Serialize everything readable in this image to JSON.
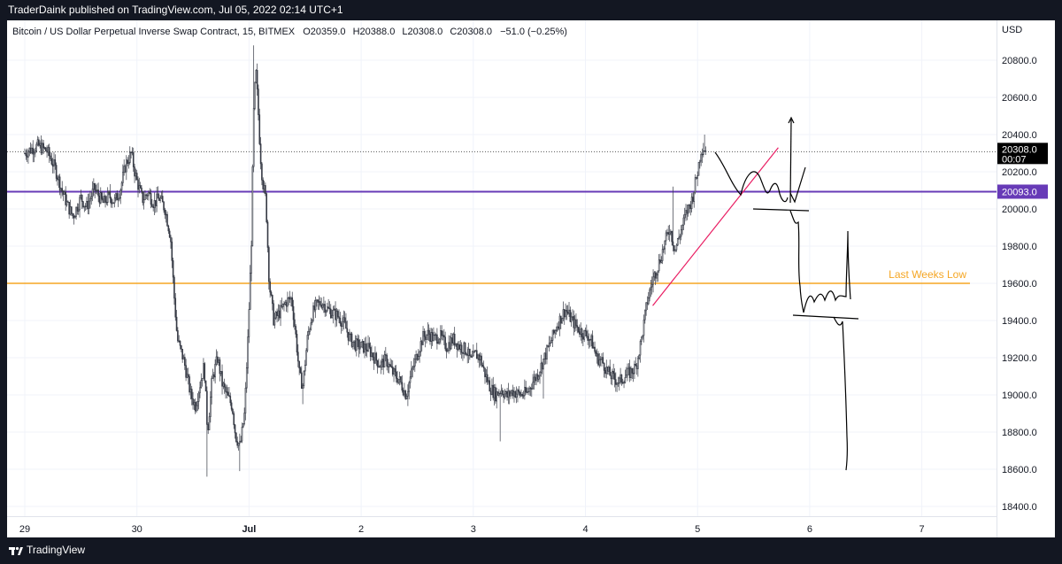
{
  "header": {
    "published_text": "TraderDaink published on TradingView.com, Jul 05, 2022 02:14 UTC+1"
  },
  "footer": {
    "brand": "TradingView"
  },
  "chart_data": {
    "type": "candlestick",
    "symbol_line": "Bitcoin / US Dollar Perpetual Inverse Swap Contract, 15, BITMEX",
    "ohlc": {
      "open_label": "O",
      "open": "20359.0",
      "high_label": "H",
      "high": "20388.0",
      "low_label": "L",
      "low": "20308.0",
      "close_label": "C",
      "close": "20308.0",
      "change": "−51.0 (−0.25%)"
    },
    "currency": "USD",
    "ylim": [
      18400,
      20900
    ],
    "y_ticks": [
      "20800.0",
      "20600.0",
      "20400.0",
      "20200.0",
      "20000.0",
      "19800.0",
      "19600.0",
      "19400.0",
      "19200.0",
      "19000.0",
      "18800.0",
      "18600.0",
      "18400.0"
    ],
    "x_ticks": [
      "29",
      "30",
      "Jul",
      "2",
      "3",
      "4",
      "5",
      "6",
      "7"
    ],
    "last_price": {
      "value": 20308.0,
      "label": "20308.0",
      "countdown": "00:07"
    },
    "horizontal_lines": [
      {
        "name": "level-20093",
        "value": 20093.0,
        "label": "20093.0",
        "color": "#673AB7"
      },
      {
        "name": "last-weeks-low",
        "value": 19600.0,
        "label": "Last Weeks Low",
        "color": "#F5A623"
      }
    ],
    "trendline_color": "#E91E63",
    "candle_color": "#363A45",
    "price_path": [
      [
        29.0,
        20300
      ],
      [
        29.05,
        20320
      ],
      [
        29.12,
        20340
      ],
      [
        29.2,
        20310
      ],
      [
        29.27,
        20220
      ],
      [
        29.32,
        20120
      ],
      [
        29.38,
        20020
      ],
      [
        29.43,
        19960
      ],
      [
        29.5,
        20060
      ],
      [
        29.55,
        20010
      ],
      [
        29.62,
        20110
      ],
      [
        29.7,
        20030
      ],
      [
        29.75,
        20070
      ],
      [
        29.8,
        20040
      ],
      [
        29.85,
        20100
      ],
      [
        29.9,
        20240
      ],
      [
        29.95,
        20300
      ],
      [
        29.98,
        20200
      ],
      [
        30.0,
        20150
      ],
      [
        30.05,
        20050
      ],
      [
        30.1,
        20090
      ],
      [
        30.15,
        20030
      ],
      [
        30.2,
        20060
      ],
      [
        30.25,
        20000
      ],
      [
        30.3,
        19850
      ],
      [
        30.33,
        19550
      ],
      [
        30.36,
        19300
      ],
      [
        30.42,
        19180
      ],
      [
        30.48,
        19000
      ],
      [
        30.52,
        18940
      ],
      [
        30.56,
        19050
      ],
      [
        30.6,
        19160
      ],
      [
        30.63,
        18800
      ],
      [
        30.67,
        19080
      ],
      [
        30.72,
        19200
      ],
      [
        30.76,
        19060
      ],
      [
        30.8,
        19000
      ],
      [
        30.85,
        18940
      ],
      [
        30.88,
        18780
      ],
      [
        30.92,
        18720
      ],
      [
        30.96,
        18900
      ],
      [
        30.99,
        19300
      ],
      [
        31.02,
        19800
      ],
      [
        31.04,
        20500
      ],
      [
        31.06,
        20750
      ],
      [
        31.08,
        20550
      ],
      [
        31.1,
        20300
      ],
      [
        31.12,
        20150
      ],
      [
        31.15,
        20050
      ],
      [
        31.18,
        19600
      ],
      [
        31.22,
        19400
      ],
      [
        31.28,
        19450
      ],
      [
        31.33,
        19500
      ],
      [
        31.38,
        19520
      ],
      [
        31.42,
        19300
      ],
      [
        31.45,
        19100
      ],
      [
        31.48,
        19050
      ],
      [
        31.52,
        19300
      ],
      [
        31.56,
        19430
      ],
      [
        31.6,
        19480
      ],
      [
        31.65,
        19500
      ],
      [
        31.7,
        19460
      ],
      [
        31.75,
        19440
      ],
      [
        31.8,
        19420
      ],
      [
        31.85,
        19380
      ],
      [
        31.9,
        19300
      ],
      [
        31.95,
        19270
      ],
      [
        32.0,
        19260
      ],
      [
        32.06,
        19250
      ],
      [
        32.12,
        19200
      ],
      [
        32.17,
        19160
      ],
      [
        32.22,
        19190
      ],
      [
        32.28,
        19120
      ],
      [
        32.34,
        19080
      ],
      [
        32.4,
        19000
      ],
      [
        32.45,
        19120
      ],
      [
        32.5,
        19220
      ],
      [
        32.55,
        19310
      ],
      [
        32.6,
        19330
      ],
      [
        32.65,
        19300
      ],
      [
        32.7,
        19320
      ],
      [
        32.76,
        19260
      ],
      [
        32.82,
        19300
      ],
      [
        32.88,
        19260
      ],
      [
        32.94,
        19240
      ],
      [
        32.98,
        19180
      ],
      [
        33.02,
        19220
      ],
      [
        33.06,
        19200
      ],
      [
        33.1,
        19120
      ],
      [
        33.15,
        19040
      ],
      [
        33.2,
        19000
      ],
      [
        33.25,
        19030
      ],
      [
        33.3,
        18990
      ],
      [
        33.35,
        19020
      ],
      [
        33.42,
        19000
      ],
      [
        33.48,
        19010
      ],
      [
        33.52,
        19060
      ],
      [
        33.58,
        19120
      ],
      [
        33.64,
        19210
      ],
      [
        33.7,
        19300
      ],
      [
        33.75,
        19380
      ],
      [
        33.82,
        19460
      ],
      [
        33.88,
        19400
      ],
      [
        33.93,
        19360
      ],
      [
        33.98,
        19330
      ],
      [
        34.02,
        19320
      ],
      [
        34.06,
        19280
      ],
      [
        34.1,
        19200
      ],
      [
        34.15,
        19180
      ],
      [
        34.2,
        19120
      ],
      [
        34.25,
        19090
      ],
      [
        34.3,
        19070
      ],
      [
        34.35,
        19100
      ],
      [
        34.4,
        19120
      ],
      [
        34.45,
        19150
      ],
      [
        34.5,
        19300
      ],
      [
        34.55,
        19500
      ],
      [
        34.6,
        19620
      ],
      [
        34.65,
        19700
      ],
      [
        34.7,
        19800
      ],
      [
        34.75,
        19900
      ],
      [
        34.8,
        19780
      ],
      [
        34.85,
        19880
      ],
      [
        34.9,
        19980
      ],
      [
        34.95,
        20050
      ],
      [
        35.0,
        20200
      ],
      [
        35.03,
        20320
      ],
      [
        35.06,
        20330
      ],
      [
        35.08,
        20308
      ]
    ]
  }
}
